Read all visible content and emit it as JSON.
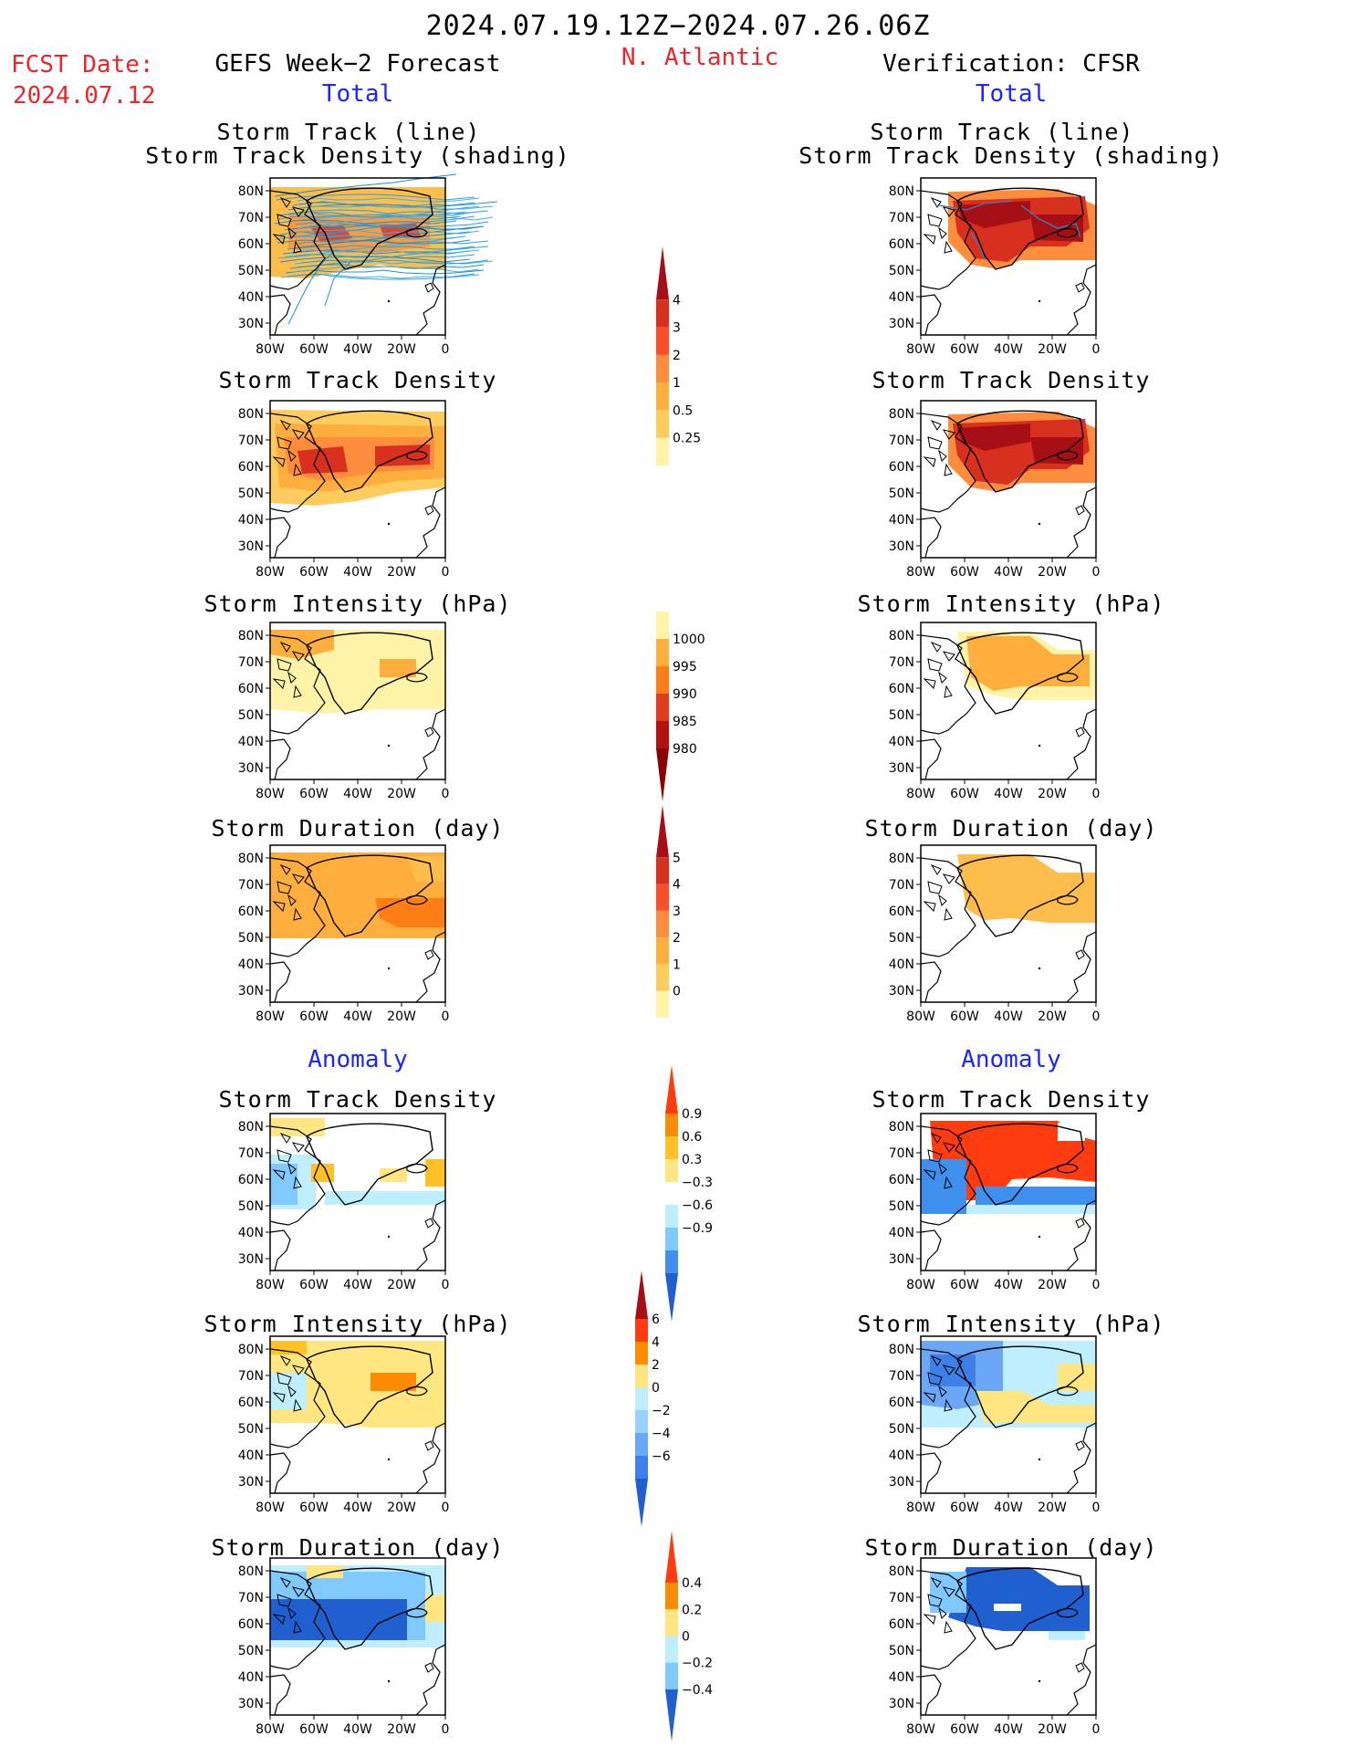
{
  "header": {
    "period": "2024.07.19.12Z−2024.07.26.06Z",
    "fcst_label": "FCST Date:",
    "fcst_date": "2024.07.12",
    "left_heading": "GEFS Week−2 Forecast",
    "region": "N. Atlantic",
    "right_heading": "Verification: CFSR",
    "total_left": "Total",
    "total_right": "Total",
    "anomaly_left": "Anomaly",
    "anomaly_right": "Anomaly"
  },
  "panel_titles": {
    "track_line": "Storm Track (line)",
    "track_density_shading": "Storm Track Density (shading)",
    "track_density": "Storm Track Density",
    "intensity": "Storm Intensity (hPa)",
    "duration": "Storm Duration (day)"
  },
  "axes": {
    "lat_labels": [
      "80N",
      "70N",
      "60N",
      "50N",
      "40N",
      "30N"
    ],
    "lon_labels": [
      "80W",
      "60W",
      "40W",
      "20W",
      "0"
    ]
  },
  "colorbars": {
    "density": {
      "labels": [
        "4",
        "3",
        "2",
        "1",
        "0.5",
        "0.25"
      ],
      "colors": [
        "#a50f15",
        "#d7301f",
        "#fc4e2a",
        "#fd8d3c",
        "#fdae3c",
        "#fecc5c",
        "#fff3a8"
      ]
    },
    "intensity": {
      "labels": [
        "1000",
        "995",
        "990",
        "985",
        "980"
      ],
      "colors": [
        "#fff3a8",
        "#fdae3c",
        "#fd7e14",
        "#e03b1b",
        "#b2110f",
        "#8b0000"
      ]
    },
    "duration": {
      "labels": [
        "5",
        "4",
        "3",
        "2",
        "1",
        "0"
      ],
      "colors": [
        "#a50f15",
        "#d7301f",
        "#fc4e2a",
        "#fd8d3c",
        "#fdae3c",
        "#fecc5c",
        "#fff3a8"
      ]
    },
    "anom_density": {
      "labels": [
        "0.9",
        "0.6",
        "0.3",
        "−0.3",
        "−0.6",
        "−0.9"
      ],
      "colors": [
        "#ff3b10",
        "#ff8c00",
        "#ffc125",
        "#ffe680",
        "#ffffff",
        "#bfefff",
        "#7fc9ff",
        "#3f8fef",
        "#1f5fd0"
      ]
    },
    "anom_intensity": {
      "labels": [
        "6",
        "4",
        "2",
        "0",
        "−2",
        "−4",
        "−6"
      ],
      "colors": [
        "#a50f15",
        "#ff3b10",
        "#ff8c00",
        "#ffe680",
        "#bfefff",
        "#9ad0ff",
        "#6aa8f5",
        "#3f7fe8",
        "#1f5fd0"
      ]
    },
    "anom_duration": {
      "labels": [
        "0.4",
        "0.2",
        "0",
        "−0.2",
        "−0.4"
      ],
      "colors": [
        "#ff3b10",
        "#ff8c00",
        "#ffe680",
        "#bfefff",
        "#7fc9ff",
        "#1f5fd0"
      ]
    }
  }
}
